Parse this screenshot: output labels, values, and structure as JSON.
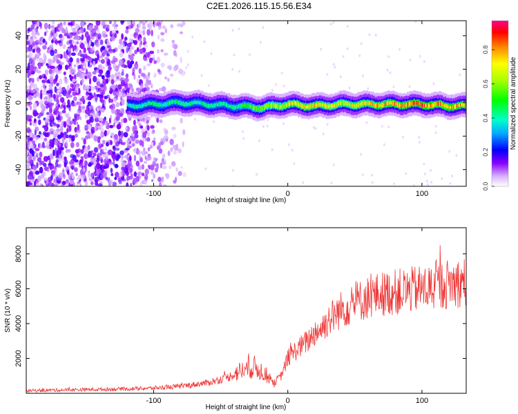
{
  "title": "C2E1.2026.115.15.56.E34",
  "chart_data": [
    {
      "type": "heatmap",
      "xlabel": "Height of straight line (km)",
      "ylabel": "Frequency (Hz)",
      "xlim": [
        -195,
        133
      ],
      "ylim": [
        -50,
        49
      ],
      "xticks": [
        -100,
        0,
        100
      ],
      "yticks": [
        -40,
        -20,
        0,
        20,
        40
      ],
      "xtick_labels": [
        "-100",
        "0",
        "100"
      ],
      "ytick_labels": [
        "-40",
        "-20",
        "0",
        "20",
        "40"
      ],
      "ridge": {
        "description_points_x": [
          -120,
          -100,
          -80,
          -60,
          -40,
          -20,
          0,
          20,
          40,
          60,
          80,
          100,
          120,
          133
        ],
        "frequency_hz": [
          -2,
          -1,
          0,
          -1,
          -2,
          -3,
          -1,
          -2,
          -1,
          -1,
          -1,
          -1,
          -2,
          -2
        ],
        "peak_amplitude": [
          0.45,
          0.5,
          0.5,
          0.5,
          0.5,
          0.7,
          0.8,
          0.85,
          0.75,
          0.85,
          0.9,
          0.95,
          0.9,
          0.9
        ]
      },
      "noise_region_x": [
        -195,
        -80
      ],
      "colorbar": {
        "label": "Normalized spectral amplitude",
        "ticks": [
          0.0,
          0.2,
          0.4,
          0.6,
          0.8
        ],
        "tick_labels": [
          "0.0",
          "0.2",
          "0.4",
          "0.6",
          "0.8"
        ],
        "range": [
          0,
          0.97
        ]
      }
    },
    {
      "type": "line",
      "xlabel": "Height of straight line (km)",
      "ylabel": "SNR (10 * v/v)",
      "xlim": [
        -195,
        133
      ],
      "ylim": [
        0,
        9500
      ],
      "xticks": [
        -100,
        0,
        100
      ],
      "yticks": [
        2000,
        4000,
        6000,
        8000
      ],
      "xtick_labels": [
        "-100",
        "0",
        "100"
      ],
      "ytick_labels": [
        "2000",
        "4000",
        "6000",
        "8000"
      ],
      "series": [
        {
          "name": "SNR",
          "color": "#ee3333",
          "x": [
            -195,
            -160,
            -120,
            -100,
            -80,
            -60,
            -45,
            -35,
            -25,
            -18,
            -10,
            -5,
            0,
            5,
            10,
            15,
            20,
            25,
            30,
            40,
            50,
            60,
            70,
            80,
            90,
            100,
            110,
            120,
            133
          ],
          "y": [
            150,
            200,
            250,
            300,
            400,
            600,
            900,
            1300,
            1500,
            1200,
            600,
            1000,
            2000,
            2400,
            2700,
            3000,
            3500,
            3700,
            4200,
            4800,
            5200,
            5500,
            5700,
            5800,
            5900,
            6000,
            6100,
            6300,
            6400
          ]
        }
      ]
    }
  ]
}
